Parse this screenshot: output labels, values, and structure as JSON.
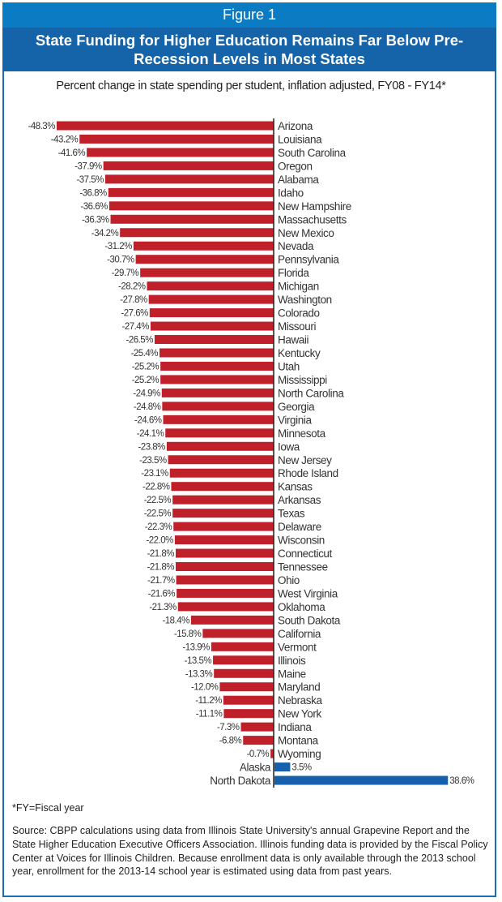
{
  "figure_label": "Figure 1",
  "chart_data": {
    "type": "bar",
    "orientation": "horizontal",
    "title": "State Funding for Higher Education Remains Far Below Pre-Recession Levels in Most States",
    "subtitle": "Percent change in state spending per student, inflation adjusted, FY08 - FY14*",
    "categories": [
      "Arizona",
      "Louisiana",
      "South Carolina",
      "Oregon",
      "Alabama",
      "Idaho",
      "New Hampshire",
      "Massachusetts",
      "New Mexico",
      "Nevada",
      "Pennsylvania",
      "Florida",
      "Michigan",
      "Washington",
      "Colorado",
      "Missouri",
      "Hawaii",
      "Kentucky",
      "Utah",
      "Mississippi",
      "North Carolina",
      "Georgia",
      "Virginia",
      "Minnesota",
      "Iowa",
      "New Jersey",
      "Rhode Island",
      "Kansas",
      "Arkansas",
      "Texas",
      "Delaware",
      "Wisconsin",
      "Connecticut",
      "Tennessee",
      "Ohio",
      "West Virginia",
      "Oklahoma",
      "South Dakota",
      "California",
      "Vermont",
      "Illinois",
      "Maine",
      "Maryland",
      "Nebraska",
      "New York",
      "Indiana",
      "Montana",
      "Wyoming",
      "Alaska",
      "North Dakota"
    ],
    "values": [
      -48.3,
      -43.2,
      -41.6,
      -37.9,
      -37.5,
      -36.8,
      -36.6,
      -36.3,
      -34.2,
      -31.2,
      -30.7,
      -29.7,
      -28.2,
      -27.8,
      -27.6,
      -27.4,
      -26.5,
      -25.4,
      -25.2,
      -25.2,
      -24.9,
      -24.8,
      -24.6,
      -24.1,
      -23.8,
      -23.5,
      -23.1,
      -22.8,
      -22.5,
      -22.5,
      -22.3,
      -22.0,
      -21.8,
      -21.8,
      -21.7,
      -21.6,
      -21.3,
      -18.4,
      -15.8,
      -13.9,
      -13.5,
      -13.3,
      -12.0,
      -11.2,
      -11.1,
      -7.3,
      -6.8,
      -0.7,
      3.5,
      38.6
    ],
    "value_labels": [
      "-48.3%",
      "-43.2%",
      "-41.6%",
      "-37.9%",
      "-37.5%",
      "-36.8%",
      "-36.6%",
      "-36.3%",
      "-34.2%",
      "-31.2%",
      "-30.7%",
      "-29.7%",
      "-28.2%",
      "-27.8%",
      "-27.6%",
      "-27.4%",
      "-26.5%",
      "-25.4%",
      "-25.2%",
      "-25.2%",
      "-24.9%",
      "-24.8%",
      "-24.6%",
      "-24.1%",
      "-23.8%",
      "-23.5%",
      "-23.1%",
      "-22.8%",
      "-22.5%",
      "-22.5%",
      "-22.3%",
      "-22.0%",
      "-21.8%",
      "-21.8%",
      "-21.7%",
      "-21.6%",
      "-21.3%",
      "-18.4%",
      "-15.8%",
      "-13.9%",
      "-13.5%",
      "-13.3%",
      "-12.0%",
      "-11.2%",
      "-11.1%",
      "-7.3%",
      "-6.8%",
      "-0.7%",
      "3.5%",
      "38.6%"
    ],
    "colors": {
      "negative": "#c0202a",
      "positive": "#1660ac"
    },
    "grid": false,
    "legend": "none"
  },
  "footnote": "*FY=Fiscal year",
  "source": "Source:  CBPP calculations using data from Illinois State University's annual Grapevine Report and the State Higher Education Executive Officers Association.  Illinois funding data is provided by the Fiscal Policy Center at Voices for Illinois Children.  Because enrollment data is only available through the 2013 school year, enrollment for the 2013-14 school year is estimated using data from past years."
}
